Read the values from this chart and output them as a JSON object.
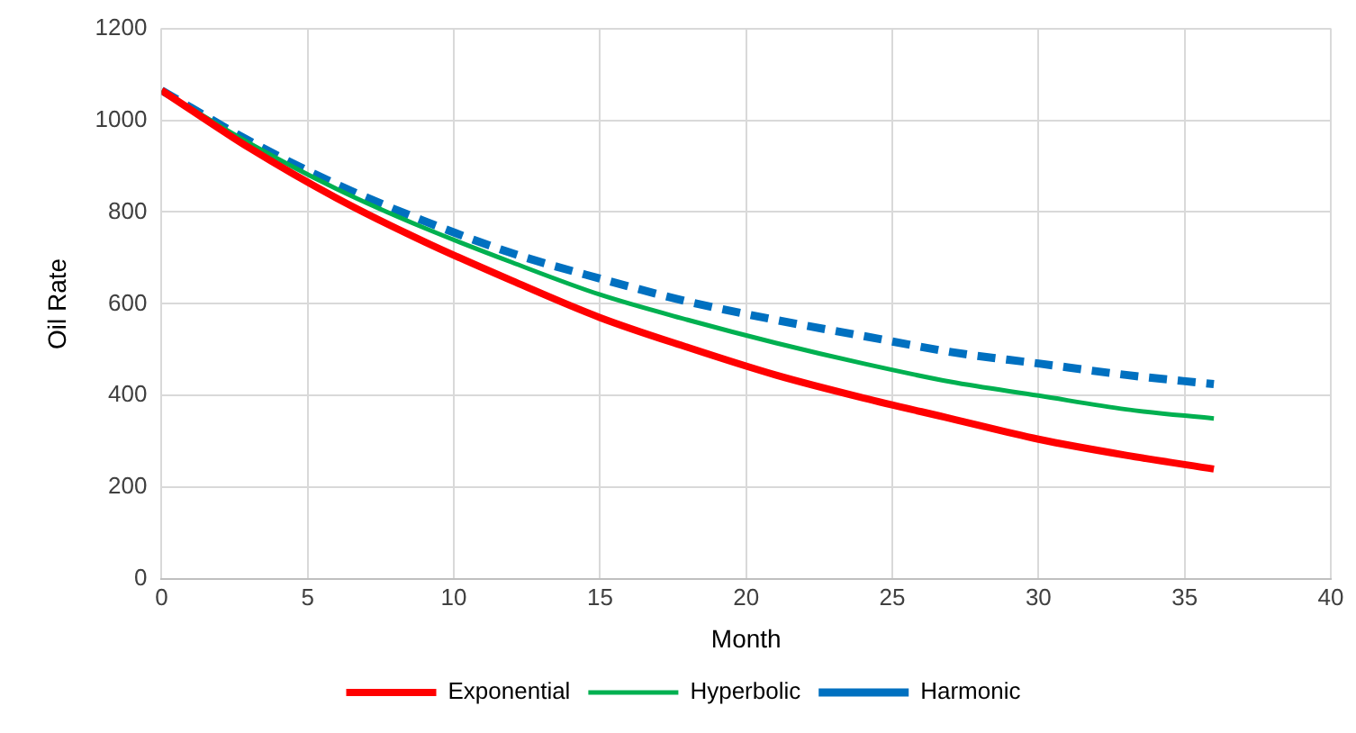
{
  "chart_data": {
    "type": "line",
    "xlabel": "Month",
    "ylabel": "Oil Rate",
    "x": [
      0,
      3,
      6,
      9,
      12,
      15,
      18,
      21,
      24,
      27,
      30,
      33,
      36
    ],
    "series": [
      {
        "name": "Exponential",
        "color": "#ff0000",
        "line_style": "solid",
        "values": [
          1065,
          940,
          830,
          735,
          650,
          570,
          505,
          445,
          395,
          350,
          305,
          270,
          240
        ]
      },
      {
        "name": "Hyperbolic",
        "color": "#00b050",
        "line_style": "solid",
        "values": [
          1065,
          950,
          850,
          765,
          690,
          620,
          565,
          515,
          470,
          430,
          400,
          370,
          350
        ]
      },
      {
        "name": "Harmonic",
        "color": "#0070c0",
        "line_style": "dashed",
        "values": [
          1065,
          955,
          860,
          780,
          710,
          655,
          605,
          565,
          530,
          495,
          470,
          445,
          425
        ]
      }
    ],
    "xlim": [
      0,
      40
    ],
    "xticks": [
      0,
      5,
      10,
      15,
      20,
      25,
      30,
      35,
      40
    ],
    "ylim": [
      0,
      1200
    ],
    "yticks": [
      0,
      200,
      400,
      600,
      800,
      1000,
      1200
    ],
    "grid": true,
    "legend": "bottom",
    "marker": "none"
  }
}
